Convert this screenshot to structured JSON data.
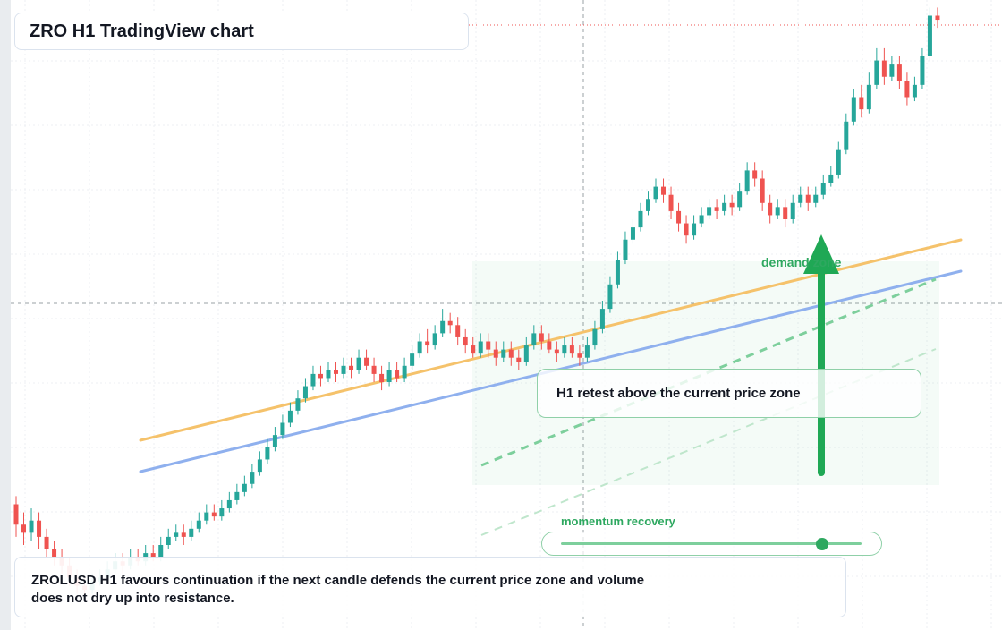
{
  "title": "ZRO H1 TradingView chart",
  "annotations": {
    "demand_zone_label": "demand zone",
    "callout_text": "H1 retest above the current price zone",
    "momentum_label": "momentum recovery",
    "momentum_level": 0.87,
    "summary": "ZROLUSD H1 favours continuation if the next candle defends the current price zone and volume does not dry up into resistance."
  },
  "colors": {
    "up": "#26a69a",
    "down": "#ef5350",
    "accent_green": "#2ea860",
    "ma_fast": "#f5c26b",
    "ma_slow": "#8fb0ee",
    "grid": "#eceff3"
  },
  "chart_data": {
    "type": "candlestick",
    "timeframe": "H1",
    "symbol": "ZROLUSD",
    "grid": true,
    "price_range": [
      0,
      100
    ],
    "candles": [
      [
        30,
        25,
        32,
        22
      ],
      [
        25,
        23,
        28,
        20
      ],
      [
        23,
        26,
        29,
        21
      ],
      [
        26,
        22,
        28,
        19
      ],
      [
        22,
        19,
        24,
        17
      ],
      [
        19,
        17,
        21,
        15
      ],
      [
        17,
        15,
        19,
        13
      ],
      [
        15,
        12,
        17,
        10
      ],
      [
        12,
        10,
        14,
        8
      ],
      [
        10,
        9,
        12,
        7
      ],
      [
        9,
        11,
        13,
        8
      ],
      [
        11,
        12,
        14,
        10
      ],
      [
        12,
        14,
        16,
        11
      ],
      [
        14,
        16,
        18,
        13
      ],
      [
        16,
        15,
        18,
        13
      ],
      [
        15,
        17,
        19,
        14
      ],
      [
        17,
        16,
        19,
        15
      ],
      [
        16,
        18,
        20,
        15
      ],
      [
        18,
        17,
        20,
        16
      ],
      [
        17,
        20,
        22,
        16
      ],
      [
        20,
        22,
        24,
        19
      ],
      [
        22,
        23,
        25,
        21
      ],
      [
        23,
        22,
        25,
        20
      ],
      [
        22,
        24,
        26,
        21
      ],
      [
        24,
        26,
        28,
        23
      ],
      [
        26,
        28,
        30,
        25
      ],
      [
        28,
        27,
        30,
        26
      ],
      [
        27,
        29,
        31,
        26
      ],
      [
        29,
        31,
        33,
        28
      ],
      [
        31,
        33,
        35,
        30
      ],
      [
        33,
        35,
        37,
        32
      ],
      [
        35,
        38,
        40,
        34
      ],
      [
        38,
        41,
        43,
        37
      ],
      [
        41,
        44,
        46,
        40
      ],
      [
        44,
        47,
        49,
        43
      ],
      [
        47,
        50,
        52,
        46
      ],
      [
        50,
        53,
        55,
        49
      ],
      [
        53,
        56,
        58,
        52
      ],
      [
        56,
        59,
        61,
        55
      ],
      [
        59,
        62,
        64,
        58
      ],
      [
        62,
        61,
        64,
        59
      ],
      [
        61,
        63,
        65,
        60
      ],
      [
        63,
        62,
        65,
        60
      ],
      [
        62,
        64,
        66,
        61
      ],
      [
        64,
        63,
        66,
        61
      ],
      [
        63,
        66,
        68,
        62
      ],
      [
        66,
        64,
        68,
        63
      ],
      [
        64,
        62,
        66,
        60
      ],
      [
        62,
        60,
        64,
        58
      ],
      [
        60,
        63,
        65,
        59
      ],
      [
        63,
        61,
        65,
        60
      ],
      [
        61,
        64,
        66,
        60
      ],
      [
        64,
        67,
        69,
        63
      ],
      [
        67,
        70,
        72,
        66
      ],
      [
        70,
        69,
        73,
        67
      ],
      [
        69,
        72,
        74,
        68
      ],
      [
        72,
        75,
        78,
        71
      ],
      [
        75,
        74,
        77,
        72
      ],
      [
        74,
        71,
        76,
        69
      ],
      [
        71,
        69,
        73,
        67
      ],
      [
        69,
        67,
        71,
        66
      ],
      [
        67,
        70,
        72,
        66
      ],
      [
        70,
        68,
        72,
        66
      ],
      [
        68,
        66,
        70,
        64
      ],
      [
        66,
        68,
        70,
        65
      ],
      [
        68,
        66,
        70,
        64
      ],
      [
        66,
        65,
        68,
        63
      ],
      [
        65,
        69,
        71,
        64
      ],
      [
        69,
        72,
        74,
        68
      ],
      [
        72,
        70,
        74,
        68
      ],
      [
        70,
        68,
        72,
        67
      ],
      [
        68,
        67,
        70,
        65
      ],
      [
        67,
        69,
        71,
        66
      ],
      [
        69,
        67,
        71,
        66
      ],
      [
        67,
        66,
        69,
        64
      ],
      [
        66,
        69,
        71,
        65
      ],
      [
        69,
        73,
        75,
        68
      ],
      [
        73,
        78,
        80,
        72
      ],
      [
        78,
        84,
        86,
        77
      ],
      [
        84,
        90,
        92,
        83
      ],
      [
        90,
        95,
        97,
        89
      ],
      [
        95,
        98,
        100,
        94
      ],
      [
        98,
        102,
        104,
        97
      ],
      [
        102,
        105,
        107,
        101
      ],
      [
        105,
        108,
        110,
        104
      ],
      [
        108,
        106,
        110,
        104
      ],
      [
        106,
        102,
        108,
        100
      ],
      [
        102,
        99,
        104,
        97
      ],
      [
        99,
        96,
        101,
        94
      ],
      [
        96,
        99,
        101,
        95
      ],
      [
        99,
        101,
        103,
        98
      ],
      [
        101,
        103,
        105,
        100
      ],
      [
        103,
        102,
        105,
        100
      ],
      [
        102,
        104,
        106,
        101
      ],
      [
        104,
        103,
        106,
        101
      ],
      [
        103,
        107,
        109,
        102
      ],
      [
        107,
        112,
        114,
        106
      ],
      [
        112,
        110,
        114,
        108
      ],
      [
        110,
        104,
        112,
        102
      ],
      [
        104,
        101,
        106,
        99
      ],
      [
        101,
        103,
        105,
        100
      ],
      [
        103,
        100,
        105,
        98
      ],
      [
        100,
        104,
        106,
        99
      ],
      [
        104,
        106,
        108,
        103
      ],
      [
        106,
        104,
        108,
        102
      ],
      [
        104,
        106,
        108,
        103
      ],
      [
        106,
        109,
        111,
        105
      ],
      [
        109,
        111,
        113,
        108
      ],
      [
        111,
        117,
        119,
        110
      ],
      [
        117,
        124,
        126,
        116
      ],
      [
        124,
        130,
        132,
        123
      ],
      [
        130,
        127,
        133,
        125
      ],
      [
        127,
        133,
        136,
        126
      ],
      [
        133,
        139,
        142,
        132
      ],
      [
        139,
        135,
        142,
        133
      ],
      [
        135,
        138,
        140,
        134
      ],
      [
        138,
        134,
        140,
        132
      ],
      [
        134,
        130,
        136,
        128
      ],
      [
        130,
        133,
        135,
        129
      ],
      [
        133,
        140,
        142,
        132
      ],
      [
        140,
        150,
        152,
        139
      ],
      [
        150,
        149,
        152,
        147
      ]
    ]
  }
}
